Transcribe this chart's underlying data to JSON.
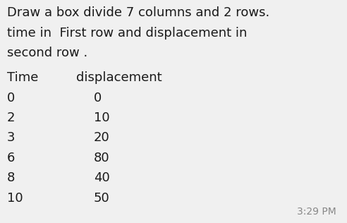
{
  "description_lines": [
    "Draw a box divide 7 columns and 2 rows.",
    "time in  First row and displacement in",
    "second row ."
  ],
  "header_row": [
    "Time",
    "displacement"
  ],
  "time_values": [
    "0",
    "2",
    "3",
    "6",
    "8",
    "10"
  ],
  "displacement_values": [
    "0",
    "10",
    "20",
    "80",
    "40",
    "50"
  ],
  "timestamp": "3:29 PM",
  "background_color": "#f0f0f0",
  "text_color": "#1a1a1a",
  "timestamp_color": "#888888",
  "font_size_desc": 13,
  "font_size_header": 13,
  "font_size_data": 13,
  "font_size_timestamp": 10
}
